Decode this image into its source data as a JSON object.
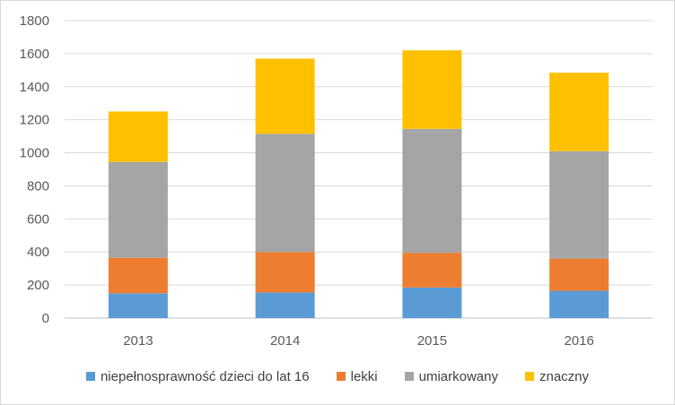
{
  "chart_data": {
    "type": "bar",
    "stacked": true,
    "title": "",
    "xlabel": "",
    "ylabel": "",
    "categories": [
      "2013",
      "2014",
      "2015",
      "2016"
    ],
    "ylim": [
      0,
      1800
    ],
    "yticks": [
      0,
      200,
      400,
      600,
      800,
      1000,
      1200,
      1400,
      1600,
      1800
    ],
    "grid": true,
    "legend_position": "bottom",
    "series": [
      {
        "name": "niepełnosprawność dzieci do lat 16",
        "color": "#5b9bd5",
        "values": [
          150,
          155,
          185,
          165
        ]
      },
      {
        "name": "lekki",
        "color": "#ed7d31",
        "values": [
          215,
          245,
          210,
          195
        ]
      },
      {
        "name": "umiarkowany",
        "color": "#a5a5a5",
        "values": [
          580,
          715,
          750,
          650
        ]
      },
      {
        "name": "znaczny",
        "color": "#ffc000",
        "values": [
          305,
          455,
          475,
          475
        ]
      }
    ]
  }
}
